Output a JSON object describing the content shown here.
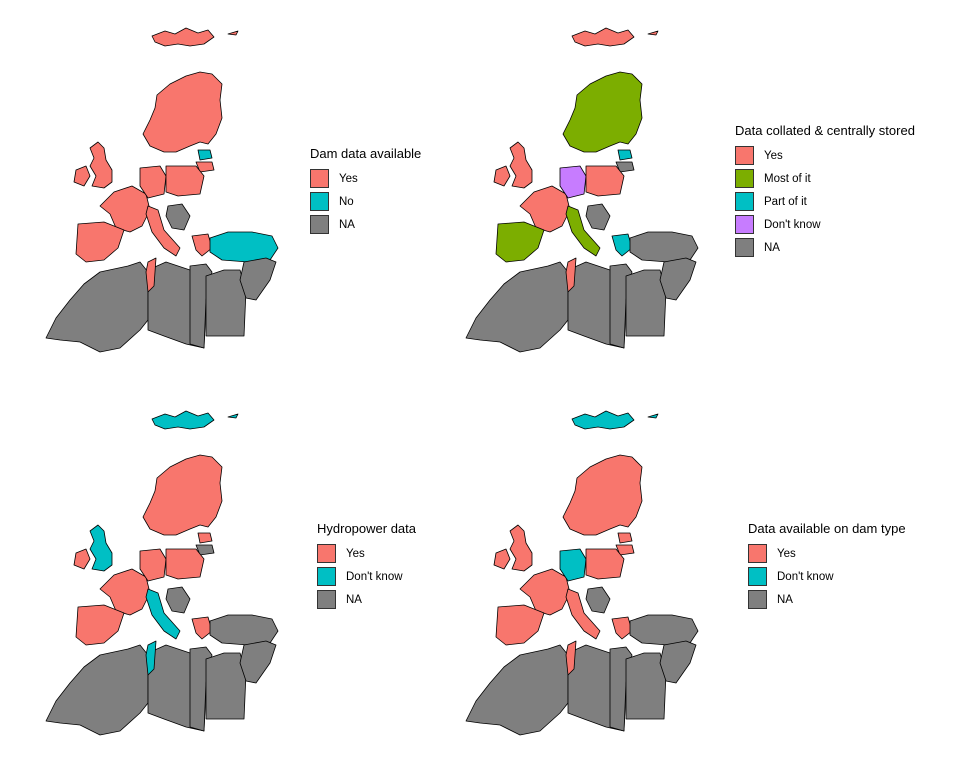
{
  "colors": {
    "yes": "#F8766D",
    "no": "#00BFC4",
    "most": "#7CAE00",
    "part": "#00BFC4",
    "dontknow_purple": "#C77CFF",
    "dontknow_teal": "#00BFC4",
    "na": "#7F7F7F"
  },
  "panels": [
    {
      "id": "dam-data",
      "legend_title": "Dam data available",
      "legend": [
        {
          "label": "Yes",
          "color": "#F8766D"
        },
        {
          "label": "No",
          "color": "#00BFC4"
        },
        {
          "label": "NA",
          "color": "#7F7F7F"
        }
      ],
      "regions": {
        "svalbard": "yes",
        "scandinavia": "yes",
        "uk": "yes",
        "ireland": "yes",
        "baltic_a": "no",
        "baltic_b": "yes",
        "western": "yes",
        "central": "yes",
        "eastern": "yes",
        "iberia": "yes",
        "italy": "yes",
        "balkans": "na",
        "greece": "yes",
        "turkey": "no",
        "maghreb_w": "na",
        "maghreb_c": "na",
        "tunisia": "yes",
        "libya": "na",
        "egypt": "na",
        "levant": "na"
      }
    },
    {
      "id": "data-collated",
      "legend_title": "Data collated & centrally stored",
      "legend": [
        {
          "label": "Yes",
          "color": "#F8766D"
        },
        {
          "label": "Most of it",
          "color": "#7CAE00"
        },
        {
          "label": "Part of it",
          "color": "#00BFC4"
        },
        {
          "label": "Don't know",
          "color": "#C77CFF"
        },
        {
          "label": "NA",
          "color": "#7F7F7F"
        }
      ],
      "regions": {
        "svalbard": "yes",
        "scandinavia": "most",
        "uk": "yes",
        "ireland": "yes",
        "baltic_a": "part",
        "baltic_b": "na",
        "western": "yes",
        "central": "dontknow_purple",
        "eastern": "yes",
        "iberia": "most",
        "italy": "most",
        "balkans": "na",
        "greece": "part",
        "turkey": "na",
        "maghreb_w": "na",
        "maghreb_c": "na",
        "tunisia": "yes",
        "libya": "na",
        "egypt": "na",
        "levant": "na"
      }
    },
    {
      "id": "hydropower",
      "legend_title": "Hydropower data",
      "legend": [
        {
          "label": "Yes",
          "color": "#F8766D"
        },
        {
          "label": "Don't know",
          "color": "#00BFC4"
        },
        {
          "label": "NA",
          "color": "#7F7F7F"
        }
      ],
      "regions": {
        "svalbard": "dontknow_teal",
        "scandinavia": "yes",
        "uk": "dontknow_teal",
        "ireland": "yes",
        "baltic_a": "yes",
        "baltic_b": "na",
        "western": "yes",
        "central": "yes",
        "eastern": "yes",
        "iberia": "yes",
        "italy": "dontknow_teal",
        "balkans": "na",
        "greece": "yes",
        "turkey": "na",
        "maghreb_w": "na",
        "maghreb_c": "na",
        "tunisia": "dontknow_teal",
        "libya": "na",
        "egypt": "na",
        "levant": "na"
      }
    },
    {
      "id": "dam-type",
      "legend_title": "Data available on dam type",
      "legend": [
        {
          "label": "Yes",
          "color": "#F8766D"
        },
        {
          "label": "Don't know",
          "color": "#00BFC4"
        },
        {
          "label": "NA",
          "color": "#7F7F7F"
        }
      ],
      "regions": {
        "svalbard": "dontknow_teal",
        "scandinavia": "yes",
        "uk": "yes",
        "ireland": "yes",
        "baltic_a": "yes",
        "baltic_b": "yes",
        "western": "yes",
        "central": "dontknow_teal",
        "eastern": "yes",
        "iberia": "yes",
        "italy": "yes",
        "balkans": "na",
        "greece": "yes",
        "turkey": "na",
        "maghreb_w": "na",
        "maghreb_c": "na",
        "tunisia": "yes",
        "libya": "na",
        "egypt": "na",
        "levant": "na"
      }
    }
  ]
}
